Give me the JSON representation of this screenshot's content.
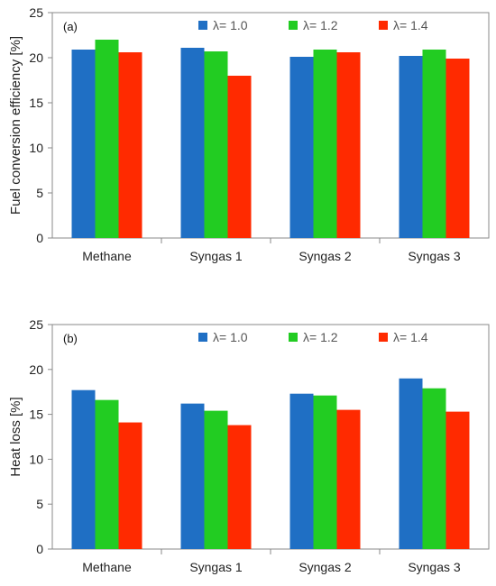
{
  "colors": {
    "lambda_1_0": "#1f6fc4",
    "lambda_1_2": "#22cc22",
    "lambda_1_4": "#ff2a00"
  },
  "chart_data": [
    {
      "type": "bar",
      "panel_label": "(a)",
      "title": "",
      "xlabel": "",
      "ylabel": "Fuel conversion efficiency [%]",
      "categories": [
        "Methane",
        "Syngas 1",
        "Syngas 2",
        "Syngas 3"
      ],
      "series": [
        {
          "name": "λ= 1.0",
          "color": "#1f6fc4",
          "values": [
            20.9,
            21.1,
            20.1,
            20.2
          ]
        },
        {
          "name": "λ= 1.2",
          "color": "#22cc22",
          "values": [
            22.0,
            20.7,
            20.9,
            20.9
          ]
        },
        {
          "name": "λ= 1.4",
          "color": "#ff2a00",
          "values": [
            20.6,
            18.0,
            20.6,
            19.9
          ]
        }
      ],
      "ylim": [
        0,
        25
      ],
      "yticks": [
        0,
        5,
        10,
        15,
        20,
        25
      ],
      "grid": false,
      "legend": "top"
    },
    {
      "type": "bar",
      "panel_label": "(b)",
      "title": "",
      "xlabel": "",
      "ylabel": "Heat loss [%]",
      "categories": [
        "Methane",
        "Syngas 1",
        "Syngas 2",
        "Syngas 3"
      ],
      "series": [
        {
          "name": "λ= 1.0",
          "color": "#1f6fc4",
          "values": [
            17.7,
            16.2,
            17.3,
            19.0
          ]
        },
        {
          "name": "λ= 1.2",
          "color": "#22cc22",
          "values": [
            16.6,
            15.4,
            17.1,
            17.9
          ]
        },
        {
          "name": "λ= 1.4",
          "color": "#ff2a00",
          "values": [
            14.1,
            13.8,
            15.5,
            15.3
          ]
        }
      ],
      "ylim": [
        0,
        25
      ],
      "yticks": [
        0,
        5,
        10,
        15,
        20,
        25
      ],
      "grid": false,
      "legend": "top"
    }
  ]
}
